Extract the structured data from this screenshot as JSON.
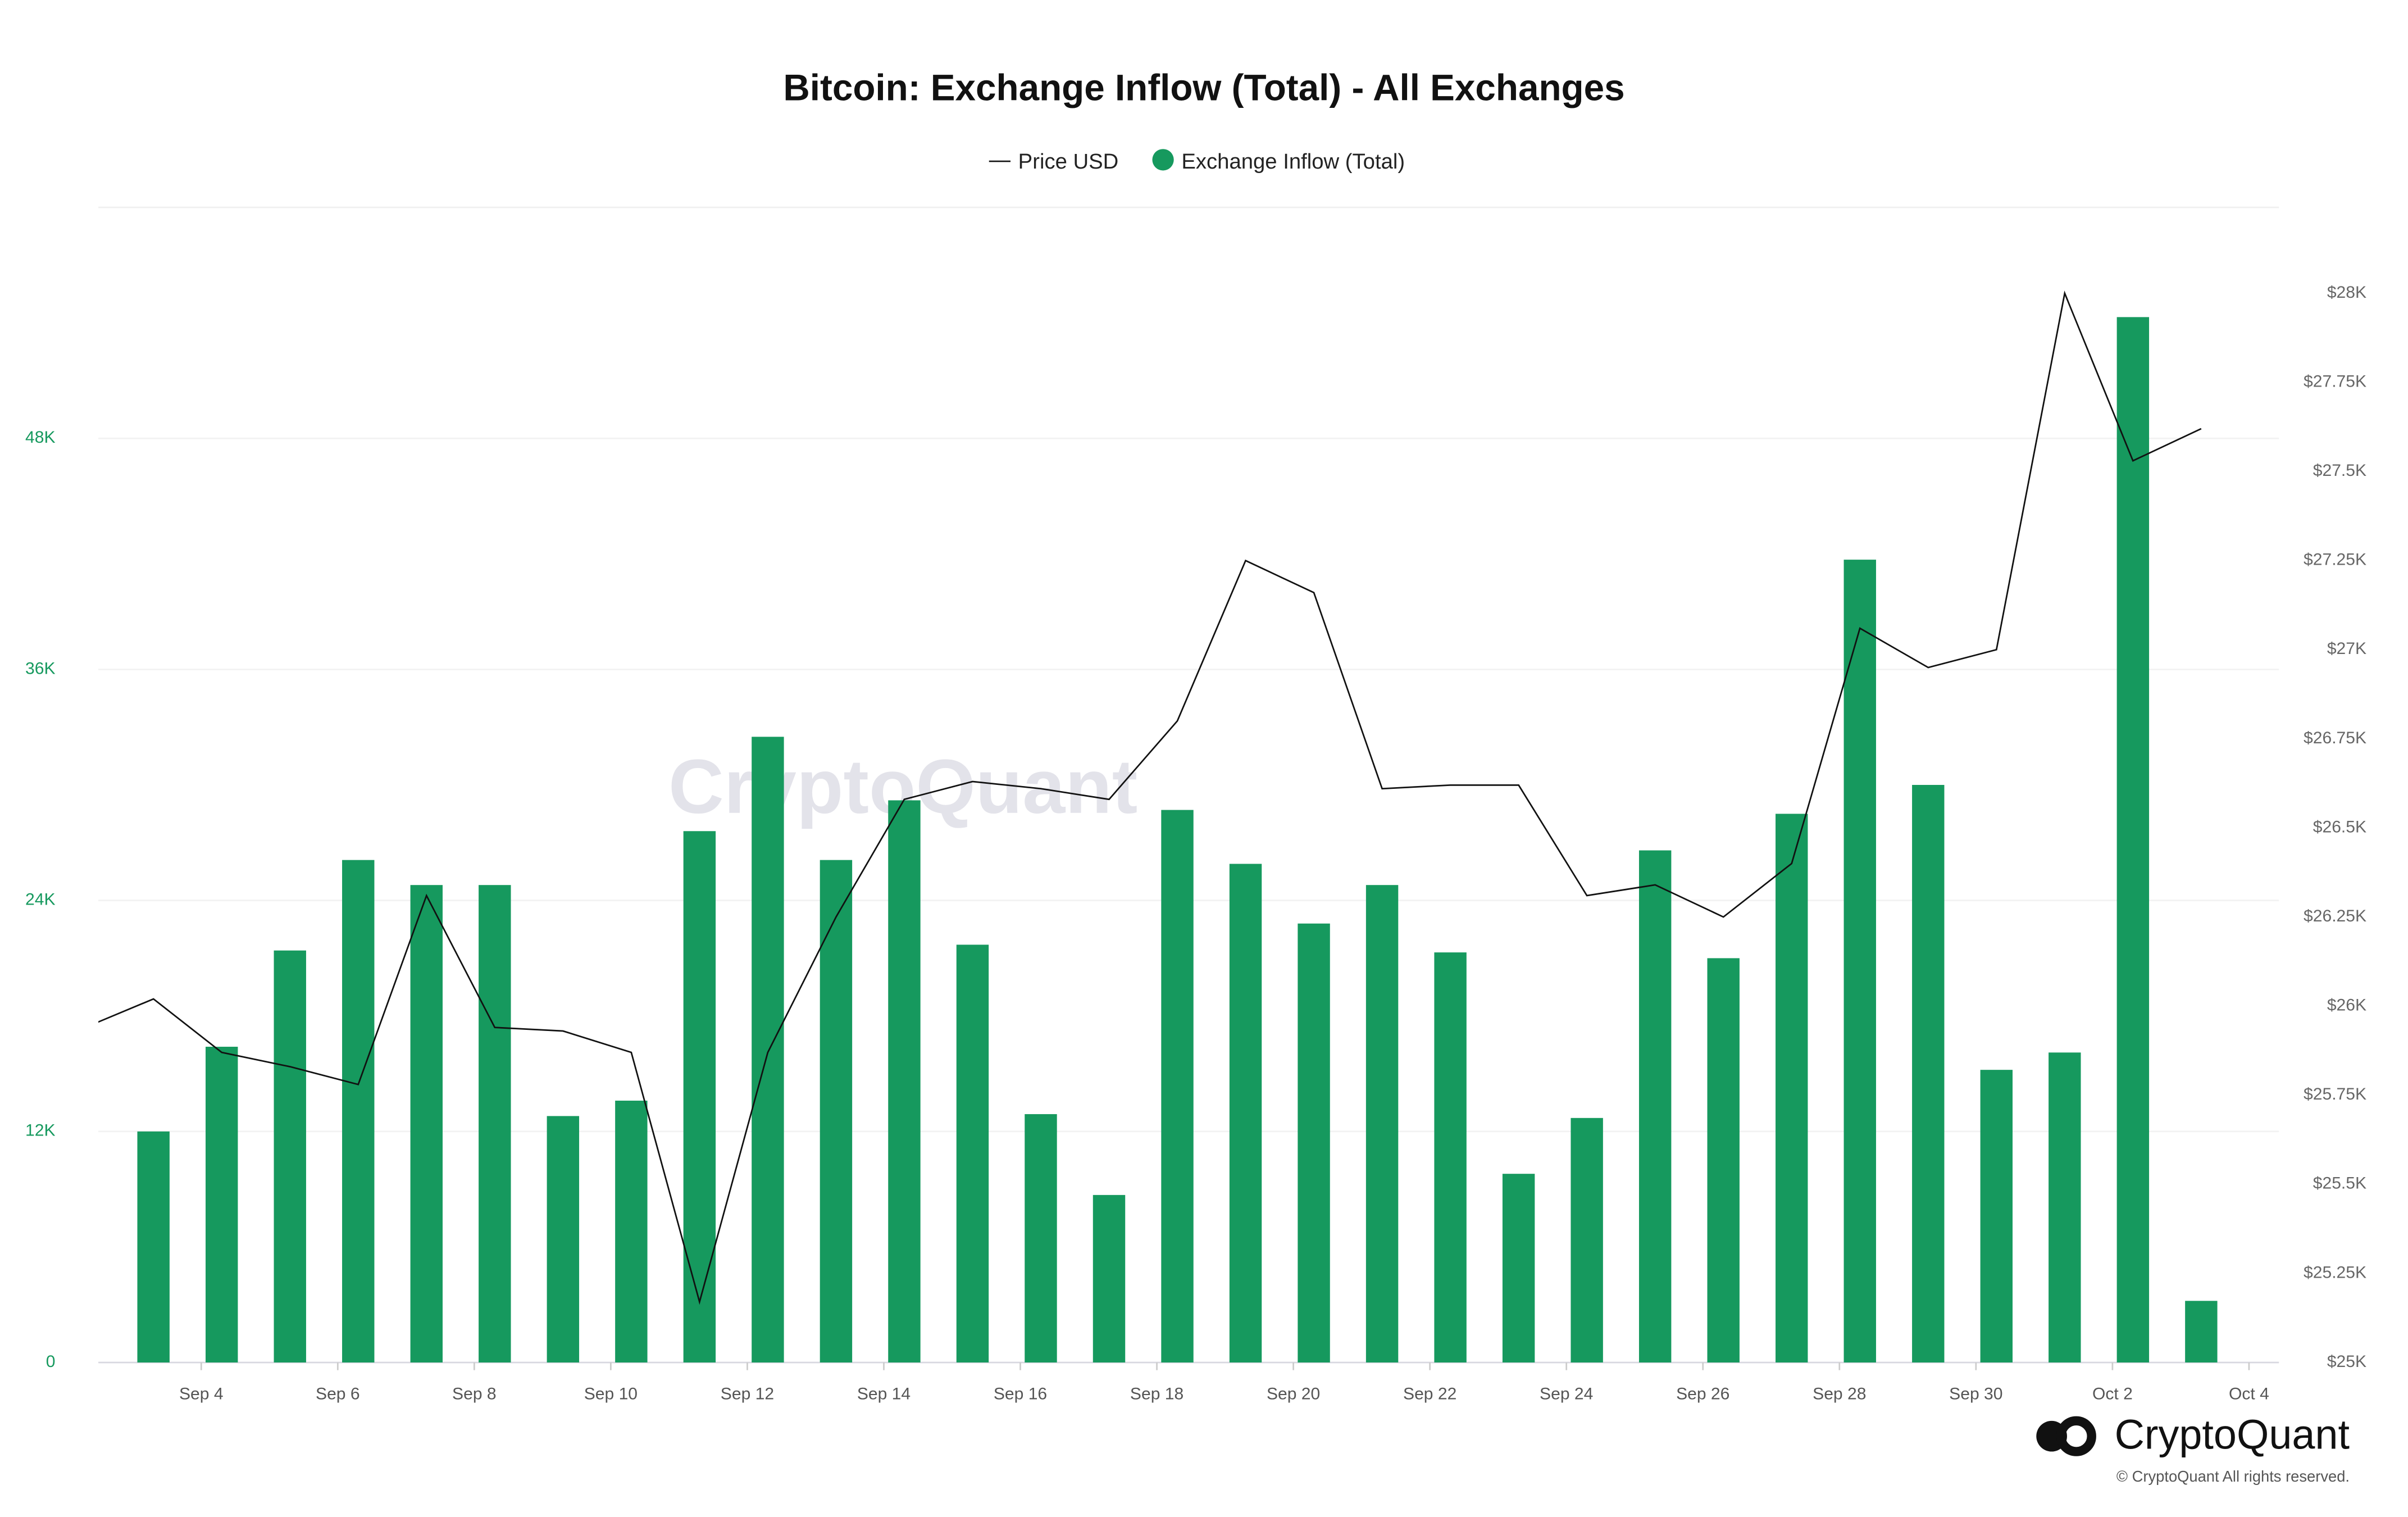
{
  "chart_data": {
    "type": "bar",
    "title": "Bitcoin: Exchange Inflow (Total) - All Exchanges",
    "categories": [
      null,
      null,
      "Sep 4",
      null,
      "Sep 6",
      null,
      "Sep 8",
      null,
      "Sep 10",
      null,
      "Sep 12",
      null,
      "Sep 14",
      null,
      "Sep 16",
      null,
      "Sep 18",
      null,
      "Sep 20",
      null,
      "Sep 22",
      null,
      "Sep 24",
      null,
      "Sep 26",
      null,
      "Sep 28",
      null,
      "Sep 30",
      null,
      "Oct 2",
      null,
      "Oct 4"
    ],
    "series": [
      {
        "name": "Price USD",
        "type": "line",
        "axis": "y2",
        "color": "#111111",
        "values": [
          25940,
          26020,
          25870,
          25830,
          25780,
          26310,
          25940,
          25930,
          25870,
          25170,
          25870,
          26250,
          26580,
          26630,
          26610,
          26580,
          26800,
          27250,
          27160,
          26610,
          26620,
          26620,
          26310,
          26340,
          26250,
          26400,
          27060,
          26950,
          27000,
          28000,
          27530,
          27620,
          null
        ]
      },
      {
        "name": "Exchange Inflow (Total)",
        "type": "bar",
        "color": "#16995e",
        "values": [
          null,
          12000,
          16400,
          21400,
          26100,
          24800,
          24800,
          12800,
          13600,
          27600,
          32500,
          26100,
          29200,
          21700,
          12900,
          8700,
          28700,
          25900,
          22800,
          24800,
          21300,
          9800,
          12700,
          26600,
          21000,
          28500,
          41700,
          30000,
          15200,
          16100,
          54300,
          3200,
          null
        ]
      }
    ],
    "ylim": [
      0,
      60000
    ],
    "yticks": [
      0,
      {
        "value": 12000,
        "label": "12K"
      },
      {
        "value": 24000,
        "label": "24K"
      },
      {
        "value": 36000,
        "label": "36K"
      },
      {
        "value": 48000,
        "label": "48K"
      }
    ],
    "y2lim": [
      25000,
      28241
    ],
    "y2ticks": [
      {
        "value": 25000,
        "label": "$25K"
      },
      {
        "value": 25250,
        "label": "$25.25K"
      },
      {
        "value": 25500,
        "label": "$25.5K"
      },
      {
        "value": 25750,
        "label": "$25.75K"
      },
      {
        "value": 26000,
        "label": "$26K"
      },
      {
        "value": 26250,
        "label": "$26.25K"
      },
      {
        "value": 26500,
        "label": "$26.5K"
      },
      {
        "value": 26750,
        "label": "$26.75K"
      },
      {
        "value": 27000,
        "label": "$27K"
      },
      {
        "value": 27250,
        "label": "$27.25K"
      },
      {
        "value": 27500,
        "label": "$27.5K"
      },
      {
        "value": 27750,
        "label": "$27.75K"
      },
      {
        "value": 28000,
        "label": "$28K"
      }
    ],
    "grid": true
  },
  "brand": "CryptoQuant",
  "copyright": "© CryptoQuant All rights reserved."
}
